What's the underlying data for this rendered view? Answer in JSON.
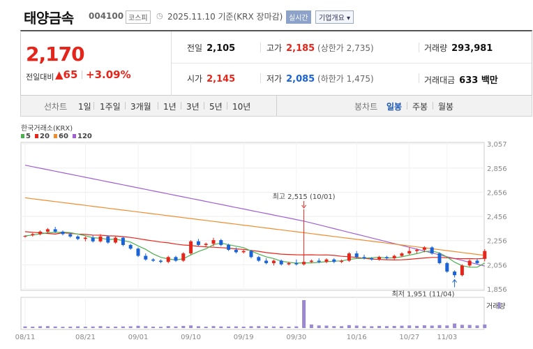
{
  "header": {
    "name": "태양금속",
    "code": "004100",
    "market": "코스피",
    "date_text": "2025.11.10 기준(KRX 장마감)",
    "realtime": "실시간",
    "company_info": "기업개요 ▾"
  },
  "summary": {
    "price": "2,170",
    "diff_label": "전일대비",
    "diff_value": "▲65",
    "diff_pct": "+3.09%",
    "prev_label": "전일",
    "prev_value": "2,105",
    "open_label": "시가",
    "open_value": "2,145",
    "high_label": "고가",
    "high_value": "2,185",
    "upper_limit": "(상한가 2,735)",
    "low_label": "저가",
    "low_value": "2,085",
    "lower_limit": "(하한가 1,475)",
    "volume_label": "거래량",
    "volume_value": "293,981",
    "amount_label": "거래대금",
    "amount_value": "633 백만"
  },
  "periods": {
    "label": "선차트",
    "items": [
      "1일",
      "1주일",
      "3개월",
      "1년",
      "3년",
      "5년",
      "10년"
    ],
    "candle_label": "봉차트",
    "candle_items": [
      "일봉",
      "주봉",
      "월봉"
    ],
    "candle_selected": "일봉"
  },
  "colors": {
    "up": "#e5251a",
    "down": "#1a63d6",
    "ma5": "#4caf50",
    "ma20": "#e5251a",
    "ma60": "#f08c30",
    "ma120": "#a060d0",
    "volume": "#9a88d0"
  },
  "chart_data": {
    "type": "candlestick",
    "source": "한국거래소(KRX)",
    "legend": [
      "5",
      "20",
      "60",
      "120"
    ],
    "ylim": [
      1856,
      3057
    ],
    "y_ticks": [
      "3,057",
      "2,856",
      "2,656",
      "2,456",
      "2,256",
      "2,056",
      "1,856"
    ],
    "y_tick_values": [
      3057,
      2856,
      2656,
      2456,
      2256,
      2056,
      1856
    ],
    "x_ticks": [
      "08/11",
      "08/21",
      "09/01",
      "09/10",
      "09/19",
      "09/30",
      "10/16",
      "10/27",
      "11/03"
    ],
    "x_tick_index": [
      0,
      8,
      15,
      22,
      29,
      36,
      44,
      51,
      56
    ],
    "high_note": "최고 2,515 (10/01)",
    "high_value": 2515,
    "high_index": 37,
    "low_note": "최저 1,951 (11/04)",
    "low_value": 1951,
    "low_index": 57,
    "volume_label": "거래량",
    "candles": [
      [
        2290,
        2300,
        2280,
        2295
      ],
      [
        2300,
        2320,
        2290,
        2310
      ],
      [
        2310,
        2340,
        2300,
        2330
      ],
      [
        2330,
        2360,
        2320,
        2350
      ],
      [
        2350,
        2370,
        2320,
        2330
      ],
      [
        2330,
        2340,
        2300,
        2310
      ],
      [
        2310,
        2320,
        2280,
        2290
      ],
      [
        2290,
        2300,
        2260,
        2270
      ],
      [
        2270,
        2290,
        2250,
        2280
      ],
      [
        2280,
        2300,
        2240,
        2250
      ],
      [
        2250,
        2310,
        2240,
        2290
      ],
      [
        2290,
        2300,
        2230,
        2240
      ],
      [
        2240,
        2290,
        2230,
        2280
      ],
      [
        2280,
        2290,
        2210,
        2220
      ],
      [
        2220,
        2230,
        2180,
        2190
      ],
      [
        2190,
        2200,
        2120,
        2130
      ],
      [
        2130,
        2150,
        2090,
        2100
      ],
      [
        2100,
        2110,
        2080,
        2090
      ],
      [
        2090,
        2100,
        2070,
        2080
      ],
      [
        2080,
        2130,
        2070,
        2120
      ],
      [
        2120,
        2130,
        2080,
        2090
      ],
      [
        2090,
        2160,
        2080,
        2150
      ],
      [
        2150,
        2260,
        2140,
        2250
      ],
      [
        2250,
        2270,
        2210,
        2220
      ],
      [
        2220,
        2240,
        2200,
        2230
      ],
      [
        2230,
        2280,
        2210,
        2260
      ],
      [
        2260,
        2270,
        2210,
        2220
      ],
      [
        2220,
        2230,
        2170,
        2180
      ],
      [
        2180,
        2200,
        2150,
        2160
      ],
      [
        2160,
        2180,
        2150,
        2170
      ],
      [
        2170,
        2180,
        2110,
        2120
      ],
      [
        2120,
        2130,
        2080,
        2090
      ],
      [
        2090,
        2110,
        2060,
        2070
      ],
      [
        2070,
        2100,
        2050,
        2090
      ],
      [
        2090,
        2100,
        2050,
        2060
      ],
      [
        2060,
        2080,
        2050,
        2070
      ],
      [
        2070,
        2100,
        2050,
        2060
      ],
      [
        2060,
        2515,
        2050,
        2080
      ],
      [
        2080,
        2100,
        2070,
        2090
      ],
      [
        2090,
        2110,
        2070,
        2080
      ],
      [
        2080,
        2110,
        2070,
        2100
      ],
      [
        2100,
        2110,
        2070,
        2080
      ],
      [
        2080,
        2100,
        2070,
        2090
      ],
      [
        2090,
        2160,
        2080,
        2150
      ],
      [
        2150,
        2170,
        2110,
        2120
      ],
      [
        2120,
        2140,
        2100,
        2110
      ],
      [
        2110,
        2120,
        2090,
        2100
      ],
      [
        2100,
        2130,
        2090,
        2120
      ],
      [
        2120,
        2130,
        2100,
        2110
      ],
      [
        2110,
        2140,
        2100,
        2130
      ],
      [
        2130,
        2160,
        2120,
        2150
      ],
      [
        2150,
        2200,
        2140,
        2170
      ],
      [
        2170,
        2190,
        2150,
        2180
      ],
      [
        2180,
        2210,
        2160,
        2200
      ],
      [
        2200,
        2210,
        2140,
        2150
      ],
      [
        2150,
        2160,
        2060,
        2070
      ],
      [
        2070,
        2080,
        1990,
        2000
      ],
      [
        2000,
        2010,
        1951,
        1970
      ],
      [
        1970,
        2060,
        1960,
        2050
      ],
      [
        2050,
        2100,
        2040,
        2090
      ],
      [
        2090,
        2110,
        2060,
        2070
      ],
      [
        2105,
        2185,
        2085,
        2170
      ]
    ],
    "volumes": [
      25,
      22,
      28,
      30,
      24,
      20,
      22,
      26,
      21,
      24,
      30,
      23,
      22,
      25,
      27,
      35,
      28,
      22,
      20,
      30,
      25,
      33,
      40,
      28,
      22,
      30,
      25,
      24,
      26,
      22,
      28,
      30,
      27,
      25,
      24,
      22,
      26,
      430,
      55,
      40,
      38,
      30,
      29,
      45,
      38,
      30,
      28,
      33,
      30,
      32,
      36,
      40,
      34,
      42,
      38,
      45,
      40,
      70,
      50,
      48,
      40,
      55
    ]
  }
}
